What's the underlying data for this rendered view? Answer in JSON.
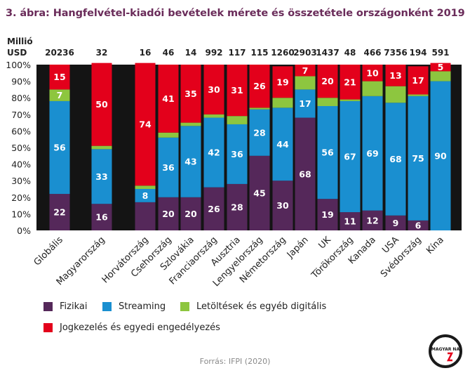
{
  "title": "3. ábra: Hangfelvétel-kiadói bevételek mérete és összetétele országonként 2019",
  "unit_line1": "Millió",
  "unit_line2": "USD",
  "source": "Forrás: IFPI (2020)",
  "logo_text": "MAGYAR NA",
  "colors": {
    "fizikai": "#55285a",
    "streaming": "#1a8fd0",
    "letoltesek": "#8dc63f",
    "jogkezeles": "#e3001b",
    "plot_bg": "#141414"
  },
  "chart_data": {
    "type": "bar",
    "stacked": true,
    "title": "3. ábra: Hangfelvétel-kiadói bevételek mérete és összetétele országonként 2019",
    "ylabel": "",
    "ylim": [
      0,
      100
    ],
    "y_ticks": [
      "0%",
      "10%",
      "20%",
      "30%",
      "40%",
      "50%",
      "60%",
      "70%",
      "80%",
      "90%",
      "100%"
    ],
    "categories": [
      "Globális",
      "Magyarország",
      "Horvátország",
      "Csehország",
      "Szlovákia",
      "Franciaország",
      "Ausztria",
      "Lengyelország",
      "Németország",
      "Japán",
      "UK",
      "Törökország",
      "Kanada",
      "USA",
      "Svédország",
      "Kína"
    ],
    "totals_musd": [
      20236,
      32,
      16,
      46,
      14,
      992,
      117,
      115,
      1260,
      2903,
      1437,
      48,
      466,
      7356,
      194,
      591
    ],
    "series": [
      {
        "name": "Fizikai",
        "values": [
          22,
          16,
          17,
          20,
          20,
          26,
          28,
          45,
          30,
          68,
          19,
          11,
          12,
          9,
          6,
          0
        ]
      },
      {
        "name": "Streaming",
        "values": [
          56,
          33,
          8,
          36,
          43,
          42,
          36,
          28,
          44,
          17,
          56,
          67,
          69,
          68,
          75,
          90
        ]
      },
      {
        "name": "Letöltések és egyéb digitális",
        "values": [
          7,
          2,
          2,
          3,
          2,
          2,
          5,
          1,
          6,
          8,
          5,
          1,
          9,
          10,
          1,
          6
        ]
      },
      {
        "name": "Jogkezelés és egyedi engedélyezés",
        "values": [
          15,
          50,
          74,
          41,
          35,
          30,
          31,
          26,
          19,
          7,
          20,
          21,
          10,
          13,
          17,
          5
        ]
      }
    ],
    "shown_labels": [
      [
        true,
        true,
        false,
        true,
        true,
        true,
        true,
        true,
        true,
        true,
        true,
        true,
        true,
        true,
        true,
        true
      ],
      [
        true,
        true,
        true,
        true,
        true,
        true,
        true,
        true,
        true,
        true,
        true,
        true,
        true,
        true,
        true,
        true
      ],
      [
        true,
        false,
        false,
        false,
        false,
        false,
        false,
        false,
        false,
        false,
        false,
        false,
        false,
        false,
        false,
        false
      ],
      [
        true,
        true,
        true,
        true,
        true,
        true,
        true,
        true,
        true,
        true,
        true,
        true,
        true,
        true,
        true,
        true
      ]
    ],
    "legend": [
      "Fizikai",
      "Streaming",
      "Letöltések és egyéb digitális",
      "Jogkezelés és egyedi engedélyezés"
    ],
    "legend_position": "bottom"
  }
}
